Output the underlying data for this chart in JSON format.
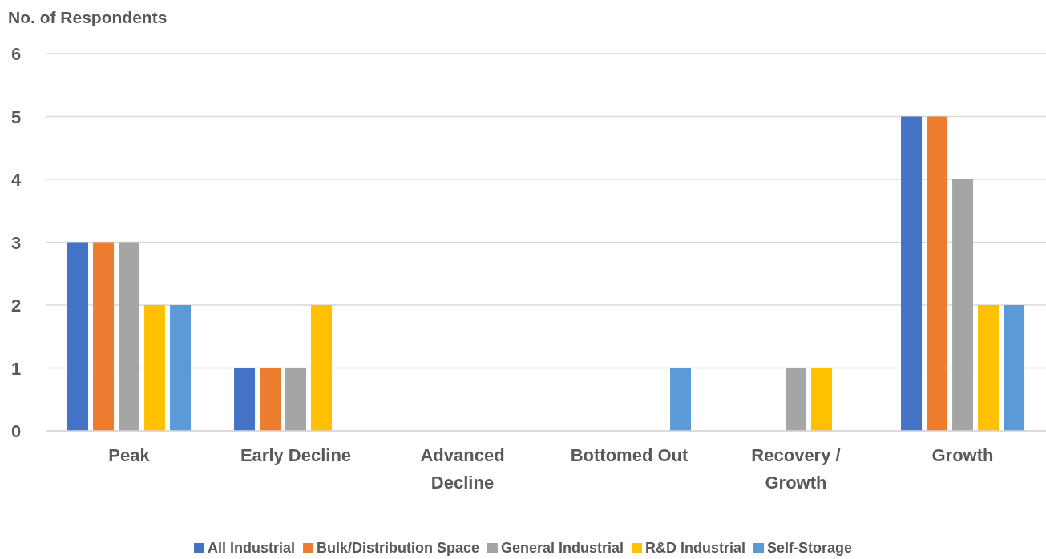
{
  "chart_data": {
    "type": "bar",
    "ylabel": "No. of Respondents",
    "categories": [
      "Peak",
      "Early Decline",
      "Advanced Decline",
      "Bottomed Out",
      "Recovery / Growth",
      "Growth"
    ],
    "series": [
      {
        "name": "All Industrial",
        "color": "#4472c4",
        "values": [
          3,
          1,
          0,
          0,
          0,
          5
        ]
      },
      {
        "name": "Bulk/Distribution Space",
        "color": "#ed7d31",
        "values": [
          3,
          1,
          0,
          0,
          0,
          5
        ]
      },
      {
        "name": "General Industrial",
        "color": "#a5a5a5",
        "values": [
          3,
          1,
          0,
          0,
          1,
          4
        ]
      },
      {
        "name": "R&D Industrial",
        "color": "#ffc000",
        "values": [
          2,
          2,
          0,
          0,
          1,
          2
        ]
      },
      {
        "name": "Self-Storage",
        "color": "#5b9bd5",
        "values": [
          2,
          0,
          0,
          1,
          0,
          2
        ]
      }
    ],
    "ylim": [
      0,
      6
    ],
    "yticks": [
      0,
      1,
      2,
      3,
      4,
      5,
      6
    ],
    "grid": "y",
    "legend": "bottom"
  }
}
